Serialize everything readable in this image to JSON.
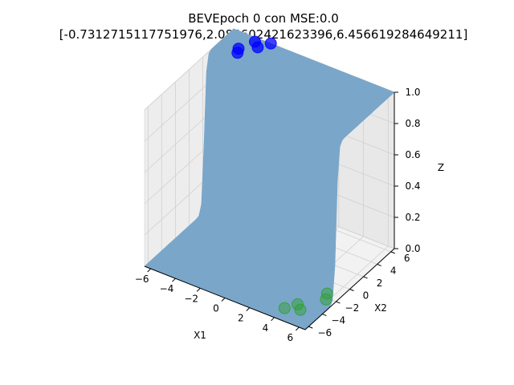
{
  "chart_data": {
    "type": "scatter",
    "title": "BEVEpoch 0 con MSE:0.0",
    "subtitle": "[-0.7312715117751976,2.084602421623396,6.456619284649211]",
    "xlabel": "X1",
    "ylabel": "X2",
    "zlabel": "Z",
    "x_ticks": [
      "−6",
      "−4",
      "−2",
      "0",
      "2",
      "4",
      "6"
    ],
    "y_ticks": [
      "−6",
      "−4",
      "−2",
      "0",
      "2",
      "4",
      "6"
    ],
    "z_ticks": [
      "0.0",
      "0.2",
      "0.4",
      "0.6",
      "0.8",
      "1.0"
    ],
    "xlim": [
      -6.5,
      6.5
    ],
    "ylim": [
      -6.5,
      6.5
    ],
    "zlim": [
      0,
      1
    ],
    "surface": {
      "description": "sigmoid surface",
      "weights": [
        -0.7312715117751976,
        2.084602421623396,
        6.456619284649211
      ],
      "color": "#1f77b4",
      "alpha": 0.5
    },
    "series": [
      {
        "color": "#0000ff",
        "points": [
          {
            "x": -5.0,
            "y": 4.5,
            "z": 1.0
          },
          {
            "x": -4.8,
            "y": 4.0,
            "z": 1.0
          },
          {
            "x": -4.5,
            "y": 6.0,
            "z": 1.0
          },
          {
            "x": -4.0,
            "y": 5.5,
            "z": 1.0
          },
          {
            "x": -3.5,
            "y": 6.5,
            "z": 1.0
          }
        ]
      },
      {
        "color": "#2ca02c",
        "points": [
          {
            "x": 4.0,
            "y": -5.0,
            "z": 0.0
          },
          {
            "x": 4.5,
            "y": -4.0,
            "z": 0.0
          },
          {
            "x": 5.0,
            "y": -4.5,
            "z": 0.0
          },
          {
            "x": 5.5,
            "y": -1.5,
            "z": 0.0
          },
          {
            "x": 5.8,
            "y": -2.2,
            "z": 0.0
          }
        ]
      }
    ]
  }
}
